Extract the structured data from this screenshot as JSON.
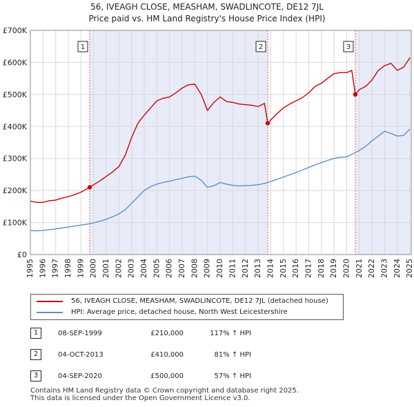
{
  "chart_data": {
    "type": "line",
    "title": "56, IVEAGH CLOSE, MEASHAM, SWADLINCOTE, DE12 7JL",
    "subtitle": "Price paid vs. HM Land Registry's House Price Index (HPI)",
    "xlabel": "",
    "ylabel": "",
    "xlim": [
      1995,
      2025.1
    ],
    "ylim": [
      0,
      700000
    ],
    "y_ticks": [
      0,
      100000,
      200000,
      300000,
      400000,
      500000,
      600000,
      700000
    ],
    "y_tick_labels": [
      "£0",
      "£100K",
      "£200K",
      "£300K",
      "£400K",
      "£500K",
      "£600K",
      "£700K"
    ],
    "x_ticks": [
      1995,
      1996,
      1997,
      1998,
      1999,
      2000,
      2001,
      2002,
      2003,
      2004,
      2005,
      2006,
      2007,
      2008,
      2009,
      2010,
      2011,
      2012,
      2013,
      2014,
      2015,
      2016,
      2017,
      2018,
      2019,
      2020,
      2021,
      2022,
      2023,
      2024,
      2025
    ],
    "x_tick_labels": [
      "1995",
      "1996",
      "1997",
      "1998",
      "1999",
      "2000",
      "2001",
      "2002",
      "2003",
      "2004",
      "2005",
      "2006",
      "2007",
      "2008",
      "2009",
      "2010",
      "2011",
      "2012",
      "2013",
      "2014",
      "2015",
      "2016",
      "2017",
      "2018",
      "2019",
      "2020",
      "2021",
      "2022",
      "2023",
      "2024",
      "2025"
    ],
    "grid": true,
    "shaded_spans": [
      [
        1999.69,
        2013.76
      ],
      [
        2020.68,
        2025.0
      ]
    ],
    "series": [
      {
        "name": "56, IVEAGH CLOSE, MEASHAM, SWADLINCOTE, DE12 7JL (detached house)",
        "color": "#cc0000",
        "x": [
          1995,
          1995.5,
          1996,
          1996.5,
          1997,
          1997.5,
          1998,
          1998.5,
          1999,
          1999.69,
          2000,
          2000.5,
          2001,
          2001.5,
          2002,
          2002.5,
          2003,
          2003.5,
          2004,
          2004.5,
          2005,
          2005.5,
          2006,
          2006.5,
          2007,
          2007.5,
          2008,
          2008.5,
          2009,
          2009.5,
          2010,
          2010.5,
          2011,
          2011.5,
          2012,
          2012.5,
          2013,
          2013.5,
          2013.76,
          2014,
          2014.5,
          2015,
          2015.5,
          2016,
          2016.5,
          2017,
          2017.5,
          2018,
          2018.5,
          2019,
          2019.5,
          2020,
          2020.4,
          2020.68,
          2021,
          2021.5,
          2022,
          2022.5,
          2023,
          2023.5,
          2024,
          2024.5,
          2025
        ],
        "values": [
          167000,
          163000,
          163000,
          168000,
          170000,
          176000,
          181000,
          187000,
          195000,
          210000,
          218000,
          230000,
          244000,
          258000,
          275000,
          310000,
          365000,
          410000,
          435000,
          458000,
          480000,
          488000,
          492000,
          505000,
          520000,
          530000,
          532000,
          500000,
          450000,
          475000,
          492000,
          478000,
          475000,
          470000,
          468000,
          466000,
          462000,
          472000,
          410000,
          420000,
          440000,
          458000,
          470000,
          480000,
          490000,
          505000,
          525000,
          535000,
          550000,
          565000,
          568000,
          568000,
          575000,
          500000,
          515000,
          525000,
          545000,
          575000,
          590000,
          597000,
          575000,
          585000,
          615000
        ]
      },
      {
        "name": "HPI: Average price, detached house, North West Leicestershire",
        "color": "#5b8ec9",
        "x": [
          1995,
          1995.5,
          1996,
          1996.5,
          1997,
          1997.5,
          1998,
          1998.5,
          1999,
          1999.5,
          2000,
          2000.5,
          2001,
          2001.5,
          2002,
          2002.5,
          2003,
          2003.5,
          2004,
          2004.5,
          2005,
          2005.5,
          2006,
          2006.5,
          2007,
          2007.5,
          2008,
          2008.5,
          2009,
          2009.5,
          2010,
          2010.5,
          2011,
          2011.5,
          2012,
          2012.5,
          2013,
          2013.5,
          2014,
          2014.5,
          2015,
          2015.5,
          2016,
          2016.5,
          2017,
          2017.5,
          2018,
          2018.5,
          2019,
          2019.5,
          2020,
          2020.5,
          2021,
          2021.5,
          2022,
          2022.5,
          2023,
          2023.5,
          2024,
          2024.5,
          2025
        ],
        "values": [
          75000,
          74000,
          75000,
          78000,
          80000,
          83000,
          86000,
          89000,
          92000,
          95000,
          99000,
          104000,
          110000,
          118000,
          127000,
          140000,
          160000,
          180000,
          200000,
          212000,
          220000,
          225000,
          229000,
          234000,
          238000,
          243000,
          245000,
          232000,
          210000,
          215000,
          225000,
          220000,
          216000,
          214000,
          215000,
          216000,
          218000,
          222000,
          228000,
          235000,
          242000,
          249000,
          256000,
          264000,
          272000,
          280000,
          287000,
          294000,
          300000,
          304000,
          305000,
          315000,
          325000,
          338000,
          355000,
          370000,
          385000,
          378000,
          370000,
          372000,
          392000
        ]
      }
    ],
    "sales": [
      {
        "label": "1",
        "x": 1999.69,
        "value": 210000
      },
      {
        "label": "2",
        "x": 2013.76,
        "value": 410000
      },
      {
        "label": "3",
        "x": 2020.68,
        "value": 500000
      }
    ]
  },
  "legend": {
    "property": "56, IVEAGH CLOSE, MEASHAM, SWADLINCOTE, DE12 7JL (detached house)",
    "hpi": "HPI: Average price, detached house, North West Leicestershire"
  },
  "table": [
    {
      "num": "1",
      "date": "08-SEP-1999",
      "price": "£210,000",
      "hpi": "117% ↑ HPI"
    },
    {
      "num": "2",
      "date": "04-OCT-2013",
      "price": "£410,000",
      "hpi": "81% ↑ HPI"
    },
    {
      "num": "3",
      "date": "04-SEP-2020",
      "price": "£500,000",
      "hpi": "57% ↑ HPI"
    }
  ],
  "footer": {
    "line1": "Contains HM Land Registry data © Crown copyright and database right 2025.",
    "line2": "This data is licensed under the Open Government Licence v3.0."
  },
  "colors": {
    "property_line": "#cc0000",
    "hpi_line": "#5b8ec9",
    "shade": "#e8ecf8",
    "grid": "#d8d8d8",
    "marker_dash": "#e06060"
  }
}
